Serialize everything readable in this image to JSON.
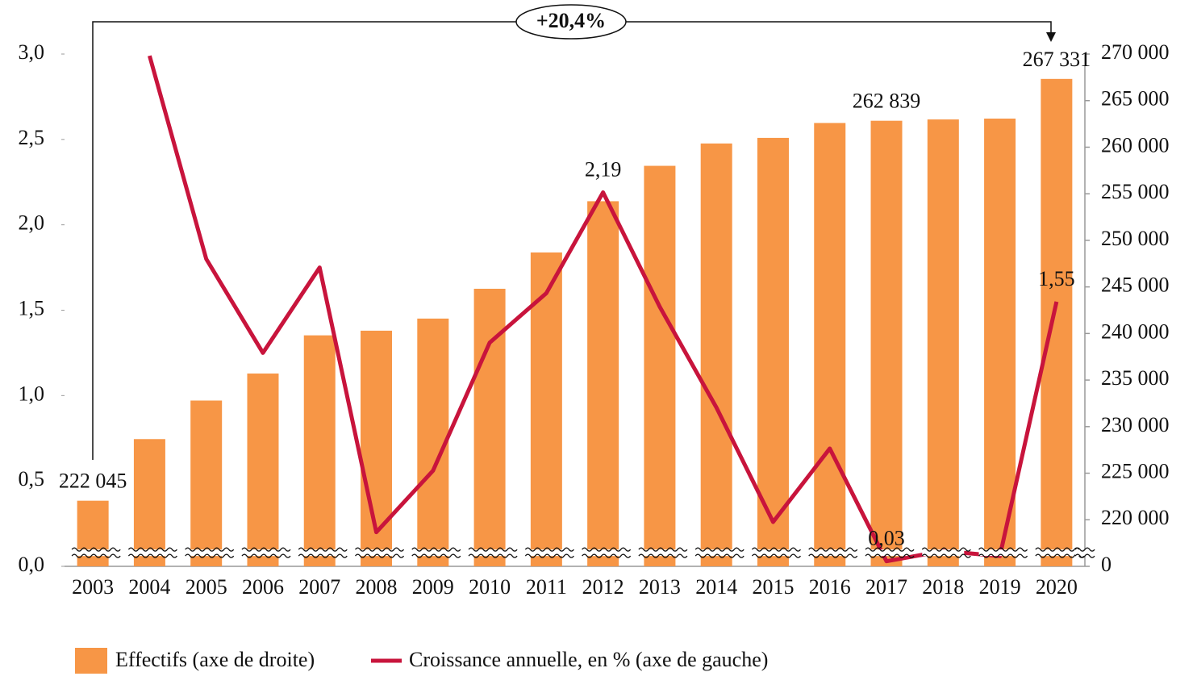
{
  "chart_data": {
    "type": "combo",
    "annotation": "+20,4%",
    "categories": [
      "2003",
      "2004",
      "2005",
      "2006",
      "2007",
      "2008",
      "2009",
      "2010",
      "2011",
      "2012",
      "2013",
      "2014",
      "2015",
      "2016",
      "2017",
      "2018",
      "2019",
      "2020"
    ],
    "series": [
      {
        "name": "Effectifs (axe de droite)",
        "type": "bar",
        "axis": "y2",
        "color": "#F79646",
        "values": [
          222045,
          228662,
          232800,
          235700,
          239800,
          240300,
          241600,
          244800,
          248700,
          254200,
          258000,
          260400,
          261000,
          262600,
          262839,
          262980,
          263070,
          267331
        ],
        "value_labels": [
          "222 045",
          null,
          null,
          null,
          null,
          null,
          null,
          null,
          null,
          null,
          null,
          null,
          null,
          null,
          "262 839",
          null,
          null,
          "267 331"
        ]
      },
      {
        "name": "Croissance annuelle, en % (axe de gauche)",
        "type": "line",
        "axis": "y",
        "color": "#C8143C",
        "values": [
          null,
          2.99,
          1.8,
          1.25,
          1.75,
          0.2,
          0.56,
          1.31,
          1.6,
          2.19,
          1.52,
          0.93,
          0.26,
          0.69,
          0.03,
          0.09,
          0.06,
          1.55
        ],
        "value_labels": [
          null,
          null,
          null,
          null,
          null,
          null,
          null,
          null,
          null,
          "2,19",
          null,
          null,
          null,
          null,
          "0,03",
          null,
          null,
          "1,55"
        ]
      }
    ],
    "ylim": [
      0,
      3
    ],
    "yticks": [
      {
        "value": 0,
        "label": "0,0"
      },
      {
        "value": 0.5,
        "label": "0,5"
      },
      {
        "value": 1,
        "label": "1,0"
      },
      {
        "value": 1.5,
        "label": "1,5"
      },
      {
        "value": 2,
        "label": "2,0"
      },
      {
        "value": 2.5,
        "label": "2,5"
      },
      {
        "value": 3,
        "label": "3,0"
      }
    ],
    "y2lim": [
      0,
      270000
    ],
    "y2ticks": [
      0,
      {
        "value": 220000,
        "label": "220 000"
      },
      {
        "value": 225000,
        "label": "225 000"
      },
      {
        "value": 230000,
        "label": "230 000"
      },
      {
        "value": 235000,
        "label": "235 000"
      },
      {
        "value": 240000,
        "label": "240 000"
      },
      {
        "value": 245000,
        "label": "245 000"
      },
      {
        "value": 250000,
        "label": "250 000"
      },
      {
        "value": 255000,
        "label": "255 000"
      },
      {
        "value": 260000,
        "label": "260 000"
      },
      {
        "value": 265000,
        "label": "265 000"
      },
      {
        "value": 270000,
        "label": "270 000"
      }
    ],
    "y2_break": true,
    "grid": false,
    "legend": "bottom"
  }
}
